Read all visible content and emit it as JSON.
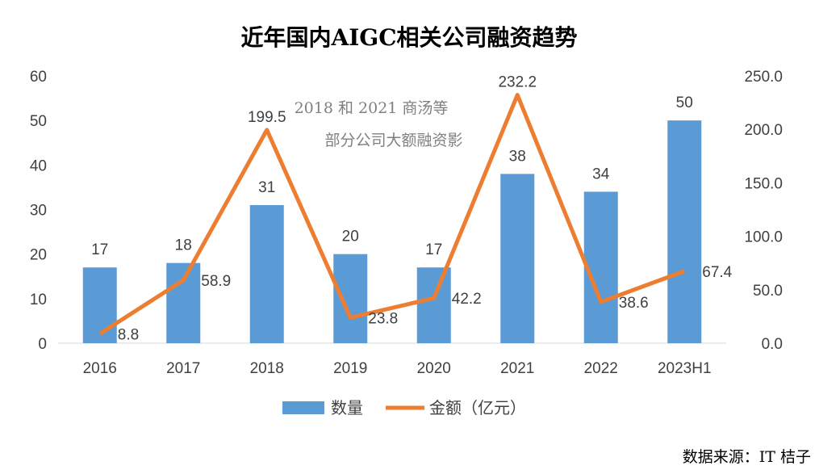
{
  "chart_data": {
    "type": "bar",
    "title": "近年国内AIGC相关公司融资趋势",
    "categories": [
      "2016",
      "2017",
      "2018",
      "2019",
      "2020",
      "2021",
      "2022",
      "2023H1"
    ],
    "series": [
      {
        "name": "数量",
        "type": "bar",
        "axis": "left",
        "color": "#5B9BD5",
        "values": [
          17,
          18,
          31,
          20,
          17,
          38,
          34,
          50
        ]
      },
      {
        "name": "金额（亿元）",
        "type": "line",
        "axis": "right",
        "color": "#ED7D31",
        "values": [
          8.8,
          58.9,
          199.5,
          23.8,
          42.2,
          232.2,
          38.6,
          67.4
        ],
        "labels": [
          "8.8",
          "58.9",
          "199.5",
          "23.8",
          "42.2",
          "232.2",
          "38.6",
          "67.4"
        ]
      }
    ],
    "y_left": {
      "min": 0,
      "max": 60,
      "ticks": [
        "0",
        "10",
        "20",
        "30",
        "40",
        "50",
        "60"
      ]
    },
    "y_right": {
      "min": 0,
      "max": 250,
      "ticks": [
        "0.0",
        "50.0",
        "100.0",
        "150.0",
        "200.0",
        "250.0"
      ]
    },
    "annotation": [
      "2018 和 2021 商汤等",
      "部分公司大额融资影"
    ],
    "legend": {
      "position": "bottom",
      "items": [
        "数量",
        "金额（亿元）"
      ]
    },
    "grid": false
  },
  "source": "数据来源：IT 桔子"
}
